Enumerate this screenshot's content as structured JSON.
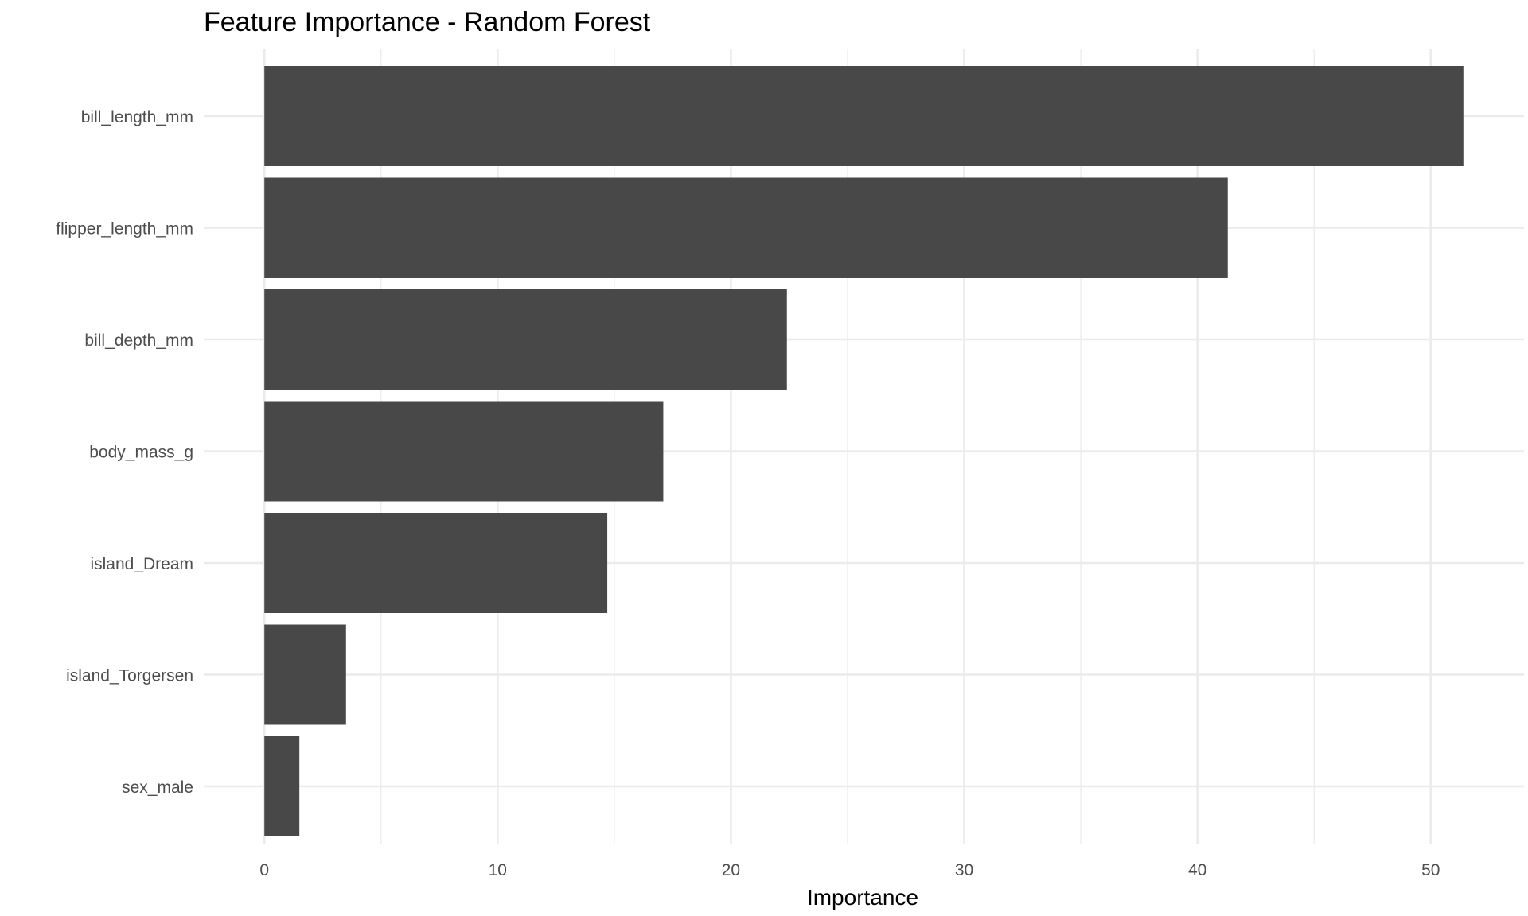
{
  "chart_data": {
    "type": "bar",
    "orientation": "horizontal",
    "title": "Feature Importance - Random Forest",
    "xlabel": "Importance",
    "ylabel": "",
    "categories": [
      "bill_length_mm",
      "flipper_length_mm",
      "bill_depth_mm",
      "body_mass_g",
      "island_Dream",
      "island_Torgersen",
      "sex_male"
    ],
    "values": [
      51.4,
      41.3,
      22.4,
      17.1,
      14.7,
      3.5,
      1.5
    ],
    "xlim": [
      -2.6,
      54.0
    ],
    "xticks": [
      0,
      10,
      20,
      30,
      40,
      50
    ],
    "xtick_labels": [
      "0",
      "10",
      "20",
      "30",
      "40",
      "50"
    ],
    "grid": true,
    "legend": "none",
    "bar_color": "#484848",
    "grid_color": "#ebebeb"
  }
}
